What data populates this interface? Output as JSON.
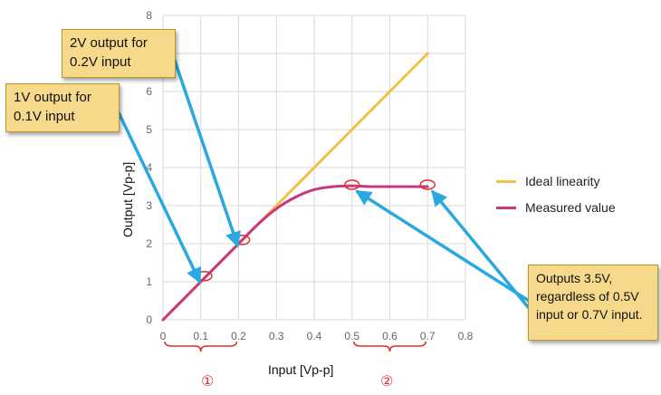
{
  "chart_data": {
    "type": "line",
    "xlabel": "Input [Vp-p]",
    "ylabel": "Output [Vp-p]",
    "xlim": [
      0,
      0.8
    ],
    "ylim": [
      0,
      8
    ],
    "xticks": [
      "0",
      "0.1",
      "0.2",
      "0.3",
      "0.4",
      "0.5",
      "0.6",
      "0.7",
      "0.8"
    ],
    "yticks": [
      "0",
      "1",
      "2",
      "3",
      "4",
      "5",
      "6",
      "7",
      "8"
    ],
    "grid": true,
    "legend_position": "right",
    "series": [
      {
        "name": "Ideal linearity",
        "color": "#f0c048",
        "x": [
          0,
          0.7
        ],
        "y": [
          0,
          7
        ]
      },
      {
        "name": "Measured value",
        "color": "#c8387e",
        "x": [
          0,
          0.1,
          0.2,
          0.25,
          0.3,
          0.35,
          0.4,
          0.45,
          0.5,
          0.55,
          0.6,
          0.65,
          0.7
        ],
        "y": [
          0,
          1,
          2,
          2.5,
          2.92,
          3.22,
          3.42,
          3.5,
          3.52,
          3.5,
          3.5,
          3.5,
          3.5
        ]
      }
    ],
    "highlight_points": [
      {
        "x": 0.11,
        "y": 1.15
      },
      {
        "x": 0.21,
        "y": 2.1
      },
      {
        "x": 0.5,
        "y": 3.55
      },
      {
        "x": 0.7,
        "y": 3.55
      }
    ],
    "annotations": [
      {
        "id": "callout-1",
        "text": "1V output for\n0.1V input",
        "target": 0
      },
      {
        "id": "callout-2",
        "text": "2V output for\n0.2V input",
        "target": 1
      },
      {
        "id": "callout-3",
        "text": "Outputs 3.5V,\nregardless of 0.5V\ninput or 0.7V input.",
        "target": [
          2,
          3
        ]
      }
    ],
    "range_markers": [
      {
        "label": "①",
        "x_from": 0,
        "x_to": 0.2
      },
      {
        "label": "②",
        "x_from": 0.5,
        "x_to": 0.7
      }
    ],
    "colors": {
      "grid": "#d9d9d9",
      "highlight": "#e03030",
      "arrow": "#29a9e0",
      "bracket": "#e03030"
    }
  }
}
